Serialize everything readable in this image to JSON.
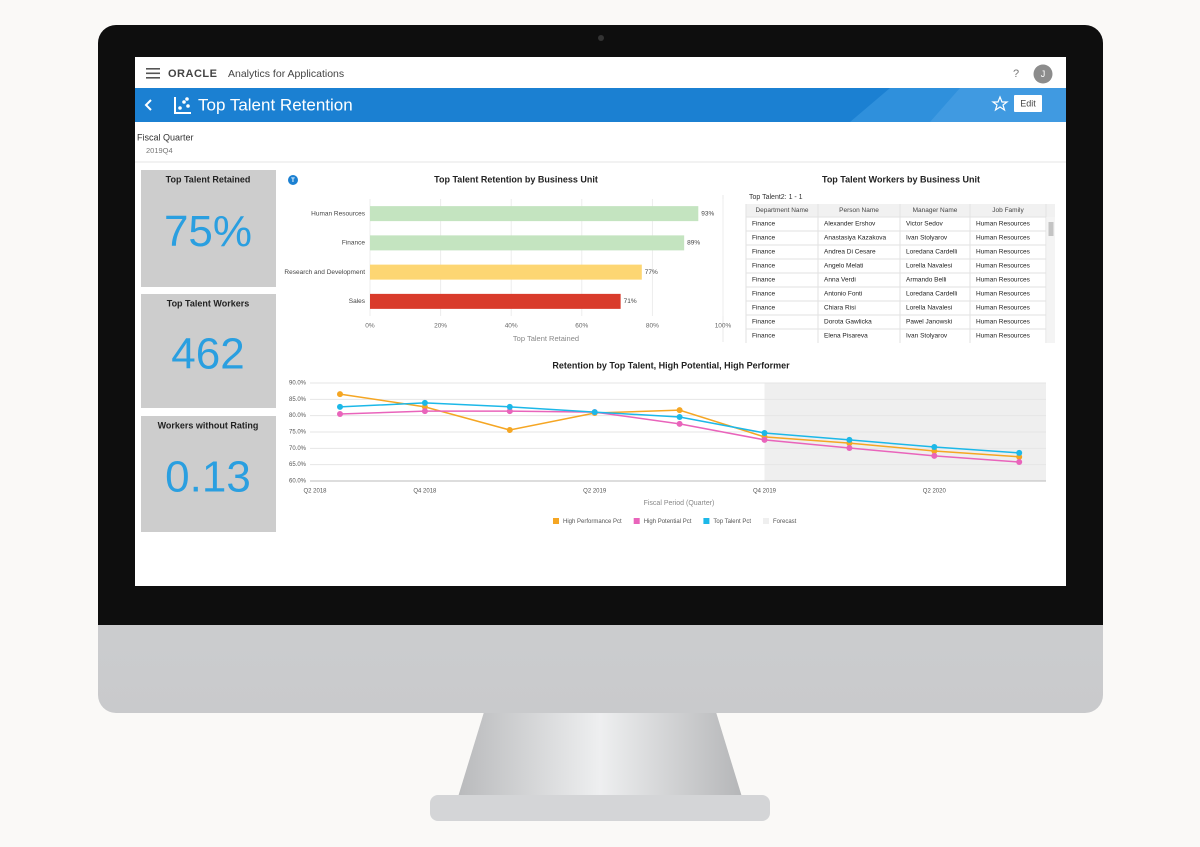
{
  "header": {
    "brand": "ORACLE",
    "app": "Analytics for Applications",
    "help": "?",
    "avatar": "J",
    "page_title": "Top Talent Retention",
    "edit": "Edit"
  },
  "filter": {
    "label": "Fiscal Quarter",
    "value": "2019Q4"
  },
  "kpis": [
    {
      "title": "Top Talent Retained",
      "value": "75%"
    },
    {
      "title": "Top Talent Workers",
      "value": 462
    },
    {
      "title": "Workers without Rating",
      "value": 0.13
    }
  ],
  "table": {
    "title": "Top Talent Workers by Business Unit",
    "caption": "Top Talent2: 1 - 1",
    "columns": [
      "Department Name",
      "Person Name",
      "Manager Name",
      "Job Family"
    ],
    "rows": [
      [
        "Finance",
        "Alexander Ershov",
        "Victor Sedov",
        "Human Resources"
      ],
      [
        "Finance",
        "Anastasiya Kazakova",
        "Ivan Stolyarov",
        "Human Resources"
      ],
      [
        "Finance",
        "Andrea Di Cesare",
        "Loredana Cardelli",
        "Human Resources"
      ],
      [
        "Finance",
        "Angelo Melati",
        "Lorella Navalesi",
        "Human Resources"
      ],
      [
        "Finance",
        "Anna Verdi",
        "Armando Belli",
        "Human Resources"
      ],
      [
        "Finance",
        "Antonio Fonti",
        "Loredana Cardelli",
        "Human Resources"
      ],
      [
        "Finance",
        "Chiara Risi",
        "Lorella Navalesi",
        "Human Resources"
      ],
      [
        "Finance",
        "Dorota Gawlicka",
        "Pawel Janowski",
        "Human Resources"
      ],
      [
        "Finance",
        "Elena Pisareva",
        "Ivan Stolyarov",
        "Human Resources"
      ]
    ]
  },
  "chart_data": [
    {
      "type": "bar",
      "orientation": "horizontal",
      "title": "Top Talent Retention by Business Unit",
      "categories": [
        "Human Resources",
        "Finance",
        "Research and Development",
        "Sales"
      ],
      "values": [
        93,
        89,
        77,
        71
      ],
      "value_labels": [
        "93%",
        "89%",
        "77%",
        "71%"
      ],
      "colors": [
        "#c4e4c0",
        "#c4e4c0",
        "#fdd673",
        "#d93b2b"
      ],
      "xlim": [
        0,
        100
      ],
      "xticks": [
        {
          "value": 0,
          "label": "0%"
        },
        {
          "value": 20,
          "label": "20%"
        },
        {
          "value": 40,
          "label": "40%"
        },
        {
          "value": 60,
          "label": "60%"
        },
        {
          "value": 80,
          "label": "80%"
        },
        {
          "value": 100,
          "label": "100%"
        }
      ],
      "xlabel": "Top Talent Retained",
      "grid": true
    },
    {
      "type": "line",
      "title": "Retention by Top Talent, High Potential, High Performer",
      "x_start_label": "Q2 2018",
      "categories": [
        null,
        "Q4 2018",
        null,
        "Q2 2019",
        null,
        "Q4 2019",
        null,
        "Q2 2020",
        null
      ],
      "xlabel": "Fiscal Period (Quarter)",
      "ylim": [
        60,
        90
      ],
      "yticks": [
        {
          "value": 90,
          "label": "90.0%"
        },
        {
          "value": 85,
          "label": "85.0%"
        },
        {
          "value": 80,
          "label": "80.0%"
        },
        {
          "value": 75,
          "label": "75.0%"
        },
        {
          "value": 70,
          "label": "70.0%"
        },
        {
          "value": 65,
          "label": "65.0%"
        },
        {
          "value": 60,
          "label": "60.0%"
        }
      ],
      "grid": true,
      "series": [
        {
          "name": "High Performance Pct",
          "color": "#f5a623",
          "values": [
            86.6,
            82.7,
            75.6,
            80.8,
            81.7,
            73.5,
            71.6,
            69.2,
            67.4
          ]
        },
        {
          "name": "High Potential Pct",
          "color": "#e964bb",
          "values": [
            80.5,
            81.4,
            81.4,
            81.1,
            77.5,
            72.6,
            70.1,
            67.7,
            65.8
          ]
        },
        {
          "name": "Top Talent Pct",
          "color": "#1cb8e8",
          "values": [
            82.7,
            83.9,
            82.7,
            81.1,
            79.6,
            74.7,
            72.6,
            70.4,
            68.6
          ]
        }
      ],
      "forecast": {
        "name": "Forecast",
        "color": "#efefef",
        "from_index": 5
      }
    }
  ]
}
